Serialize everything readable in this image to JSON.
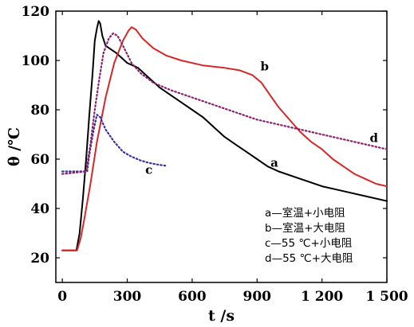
{
  "chart_data": {
    "type": "line",
    "xlabel": "t /s",
    "ylabel": "θ /℃",
    "xlim": [
      -30,
      1500
    ],
    "ylim": [
      10,
      120
    ],
    "xticks": [
      0,
      300,
      600,
      900,
      1200,
      1500
    ],
    "xtick_labels": [
      "0",
      "300",
      "600",
      "900",
      "1 200",
      "1 500"
    ],
    "yticks": [
      20,
      40,
      60,
      80,
      100,
      120
    ],
    "ytick_labels": [
      "20",
      "40",
      "60",
      "80",
      "100",
      "120"
    ],
    "grid": false,
    "legend_position": "bottom-right",
    "legend": [
      {
        "key": "a",
        "text": "a—室温+小电阻"
      },
      {
        "key": "b",
        "text": "b—室温+大电阻"
      },
      {
        "key": "c",
        "text": "c—55 ℃+小电阻"
      },
      {
        "key": "d",
        "text": "d—55 ℃+大电阻"
      }
    ],
    "series": [
      {
        "label": "a",
        "color": "#000000",
        "style": "solid",
        "points": [
          [
            0,
            23
          ],
          [
            65,
            23
          ],
          [
            80,
            30
          ],
          [
            95,
            44
          ],
          [
            110,
            60
          ],
          [
            125,
            78
          ],
          [
            140,
            95
          ],
          [
            150,
            108
          ],
          [
            160,
            113
          ],
          [
            168,
            116
          ],
          [
            175,
            115
          ],
          [
            185,
            110
          ],
          [
            200,
            106
          ],
          [
            250,
            103
          ],
          [
            300,
            99
          ],
          [
            350,
            97
          ],
          [
            400,
            93
          ],
          [
            450,
            89
          ],
          [
            500,
            86
          ],
          [
            550,
            83
          ],
          [
            600,
            80
          ],
          [
            650,
            77
          ],
          [
            700,
            73
          ],
          [
            750,
            69
          ],
          [
            800,
            66
          ],
          [
            850,
            63
          ],
          [
            900,
            60
          ],
          [
            950,
            57
          ],
          [
            1000,
            55
          ],
          [
            1100,
            52
          ],
          [
            1200,
            49
          ],
          [
            1300,
            47
          ],
          [
            1400,
            45
          ],
          [
            1500,
            43
          ]
        ]
      },
      {
        "label": "b",
        "color": "#d62728",
        "style": "solid",
        "points": [
          [
            0,
            23
          ],
          [
            68,
            23
          ],
          [
            85,
            28
          ],
          [
            100,
            35
          ],
          [
            130,
            50
          ],
          [
            160,
            67
          ],
          [
            200,
            85
          ],
          [
            240,
            99
          ],
          [
            280,
            108
          ],
          [
            305,
            112
          ],
          [
            320,
            113.5
          ],
          [
            340,
            112.5
          ],
          [
            370,
            109
          ],
          [
            420,
            105
          ],
          [
            480,
            102
          ],
          [
            550,
            100
          ],
          [
            650,
            98
          ],
          [
            750,
            97
          ],
          [
            820,
            96
          ],
          [
            880,
            94
          ],
          [
            920,
            91
          ],
          [
            960,
            86
          ],
          [
            1000,
            81
          ],
          [
            1050,
            76
          ],
          [
            1100,
            71
          ],
          [
            1150,
            67
          ],
          [
            1200,
            64
          ],
          [
            1250,
            60
          ],
          [
            1300,
            57
          ],
          [
            1350,
            54
          ],
          [
            1400,
            52
          ],
          [
            1450,
            50
          ],
          [
            1500,
            49
          ]
        ]
      },
      {
        "label": "c",
        "color": "#3b2f9e",
        "style": "dotted",
        "points": [
          [
            0,
            55
          ],
          [
            115,
            55
          ],
          [
            125,
            62
          ],
          [
            145,
            72
          ],
          [
            160,
            78
          ],
          [
            175,
            77
          ],
          [
            200,
            72
          ],
          [
            240,
            67
          ],
          [
            280,
            63
          ],
          [
            320,
            61
          ],
          [
            360,
            59.5
          ],
          [
            400,
            58.5
          ],
          [
            440,
            57.8
          ],
          [
            480,
            57.3
          ]
        ]
      },
      {
        "label": "d",
        "color": "#8b1e6f",
        "style": "dotted",
        "points": [
          [
            0,
            54
          ],
          [
            110,
            55
          ],
          [
            130,
            66
          ],
          [
            150,
            80
          ],
          [
            170,
            92
          ],
          [
            190,
            103
          ],
          [
            215,
            109
          ],
          [
            235,
            111
          ],
          [
            255,
            110
          ],
          [
            280,
            106
          ],
          [
            320,
            99
          ],
          [
            360,
            95
          ],
          [
            420,
            91
          ],
          [
            500,
            88
          ],
          [
            600,
            85
          ],
          [
            700,
            82
          ],
          [
            800,
            79
          ],
          [
            900,
            76
          ],
          [
            1000,
            74
          ],
          [
            1100,
            72
          ],
          [
            1200,
            70
          ],
          [
            1300,
            68
          ],
          [
            1400,
            66
          ],
          [
            1500,
            64
          ]
        ]
      }
    ],
    "annotations": [
      {
        "text": "a",
        "x": 980,
        "y": 57
      },
      {
        "text": "b",
        "x": 935,
        "y": 96
      },
      {
        "text": "c",
        "x": 400,
        "y": 54
      },
      {
        "text": "d",
        "x": 1440,
        "y": 67
      }
    ]
  }
}
